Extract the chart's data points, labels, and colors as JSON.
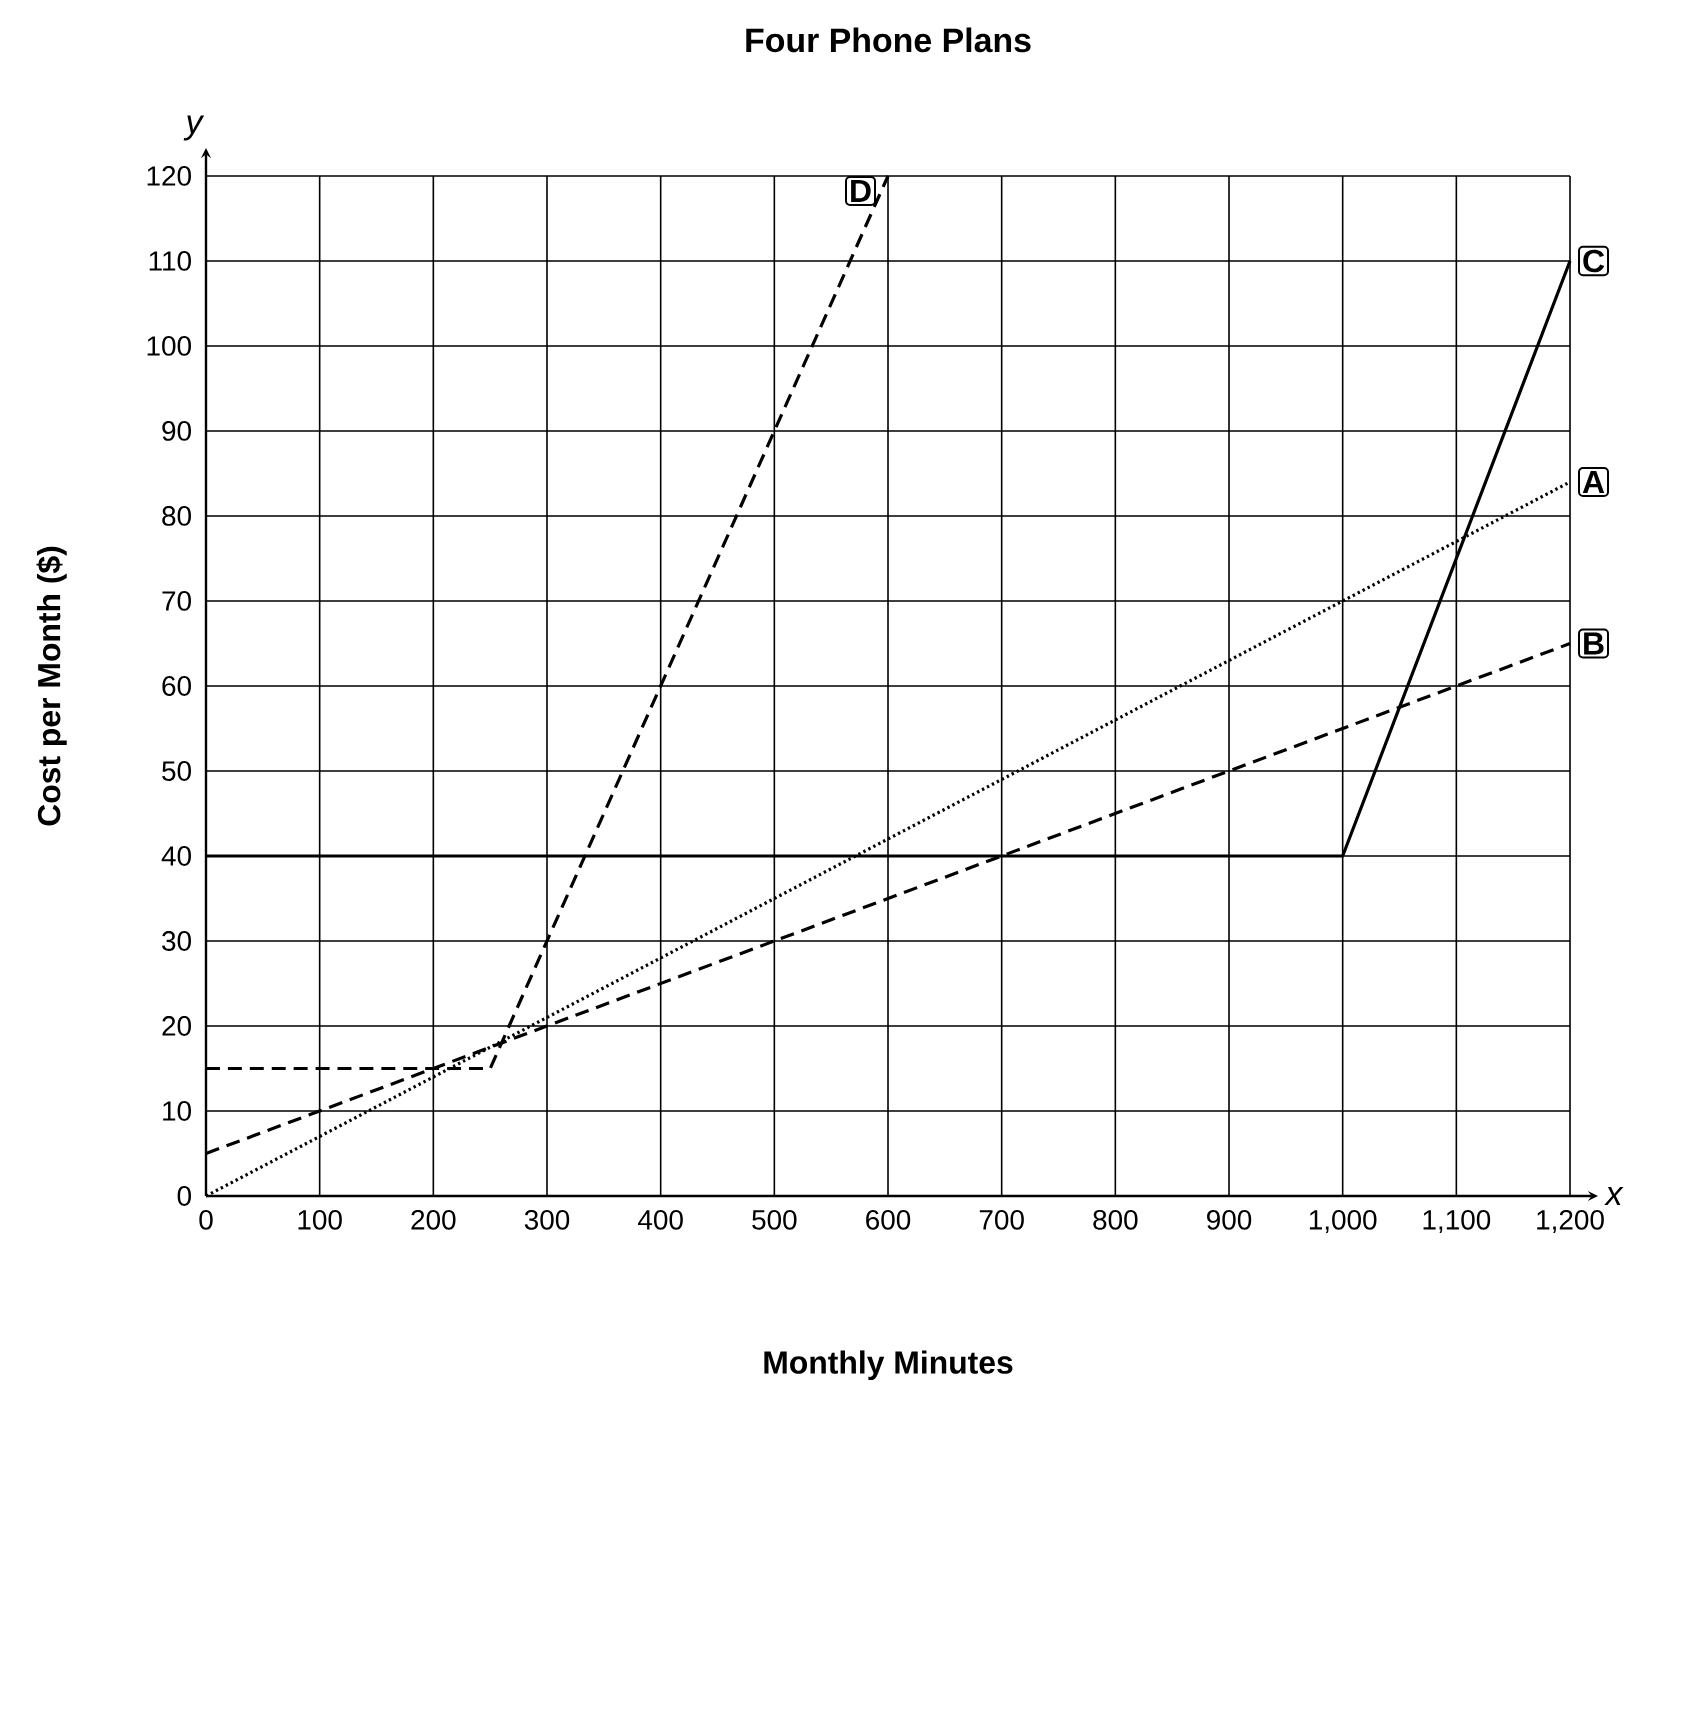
{
  "chart_data": {
    "type": "line",
    "title": "Four Phone Plans",
    "xlabel": "Monthly Minutes",
    "ylabel": "Cost per Month ($)",
    "annotations": [
      "x",
      "y"
    ],
    "series": [
      {
        "name": "A",
        "color": "#000000",
        "line_style": "dotted",
        "x": [
          0,
          1200
        ],
        "values": [
          0,
          84
        ]
      },
      {
        "name": "B",
        "color": "#000000",
        "line_style": "dashed",
        "x": [
          0,
          1200
        ],
        "values": [
          5,
          65
        ]
      },
      {
        "name": "C",
        "color": "#000000",
        "line_style": "solid",
        "x": [
          0,
          1000,
          1200
        ],
        "values": [
          40,
          40,
          110
        ]
      },
      {
        "name": "D",
        "color": "#000000",
        "line_style": "dashed",
        "x": [
          0,
          250,
          600
        ],
        "values": [
          15,
          15,
          120
        ]
      }
    ],
    "xlim": [
      0,
      1200
    ],
    "ylim": [
      0,
      120
    ],
    "xticks": [
      0,
      100,
      200,
      300,
      400,
      500,
      600,
      700,
      800,
      900,
      {
        "value": 1000,
        "label": "1,000"
      },
      {
        "value": 1100,
        "label": "1,100"
      },
      {
        "value": 1200,
        "label": "1,200"
      }
    ],
    "yticks": [
      0,
      10,
      20,
      30,
      40,
      50,
      60,
      70,
      80,
      90,
      100,
      110,
      120
    ],
    "grid": true,
    "legend": false,
    "marker": "none"
  }
}
